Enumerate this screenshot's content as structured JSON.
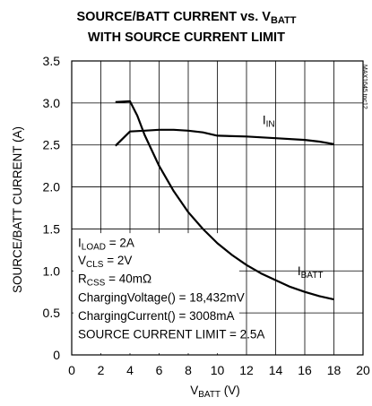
{
  "chart_data": {
    "type": "line",
    "title_line1": "SOURCE/BATT CURRENT vs. V",
    "title_line1_sub": "BATT",
    "title_line2": "WITH SOURCE CURRENT LIMIT",
    "xlabel_main": "V",
    "xlabel_sub": "BATT",
    "xlabel_unit": " (V)",
    "ylabel": "SOURCE/BATT CURRENT (A)",
    "xlim": [
      0,
      20
    ],
    "ylim": [
      0,
      3.5
    ],
    "x_ticks": [
      "0",
      "2",
      "4",
      "6",
      "8",
      "10",
      "12",
      "14",
      "16",
      "18",
      "20"
    ],
    "y_ticks": [
      "0",
      "0.5",
      "1.0",
      "1.5",
      "2.0",
      "2.5",
      "3.0",
      "3.5"
    ],
    "grid": true,
    "series": [
      {
        "name_main": "I",
        "name_sub": "IN",
        "points": [
          [
            3.0,
            2.49
          ],
          [
            4.0,
            2.66
          ],
          [
            5.0,
            2.67
          ],
          [
            6.0,
            2.68
          ],
          [
            7.0,
            2.68
          ],
          [
            8.0,
            2.67
          ],
          [
            9.0,
            2.65
          ],
          [
            10.0,
            2.61
          ],
          [
            12.0,
            2.6
          ],
          [
            14.0,
            2.58
          ],
          [
            16.0,
            2.56
          ],
          [
            17.0,
            2.54
          ],
          [
            18.0,
            2.51
          ]
        ]
      },
      {
        "name_main": "I",
        "name_sub": "BATT",
        "points": [
          [
            3.0,
            3.01
          ],
          [
            4.0,
            3.02
          ],
          [
            4.5,
            2.85
          ],
          [
            5.0,
            2.62
          ],
          [
            6.0,
            2.25
          ],
          [
            7.0,
            1.95
          ],
          [
            8.0,
            1.7
          ],
          [
            9.0,
            1.5
          ],
          [
            10.0,
            1.33
          ],
          [
            11.0,
            1.19
          ],
          [
            12.0,
            1.07
          ],
          [
            13.0,
            0.97
          ],
          [
            14.0,
            0.89
          ],
          [
            15.0,
            0.81
          ],
          [
            16.0,
            0.75
          ],
          [
            17.0,
            0.7
          ],
          [
            18.0,
            0.66
          ]
        ]
      }
    ],
    "annotations": [
      {
        "main": "I",
        "sub": "LOAD",
        "rest": " = 2A"
      },
      {
        "main": "V",
        "sub": "CLS",
        "rest": " = 2V"
      },
      {
        "main": "R",
        "sub": "CSS",
        "rest": " = 40mΩ"
      },
      {
        "main": "ChargingVoltage() = 18,432mV",
        "sub": "",
        "rest": ""
      },
      {
        "main": "ChargingCurrent() = 3008mA",
        "sub": "",
        "rest": ""
      },
      {
        "main": "SOURCE CURRENT LIMIT = 2.5A",
        "sub": "",
        "rest": ""
      }
    ],
    "side_id": "MAX1645 toc12"
  }
}
